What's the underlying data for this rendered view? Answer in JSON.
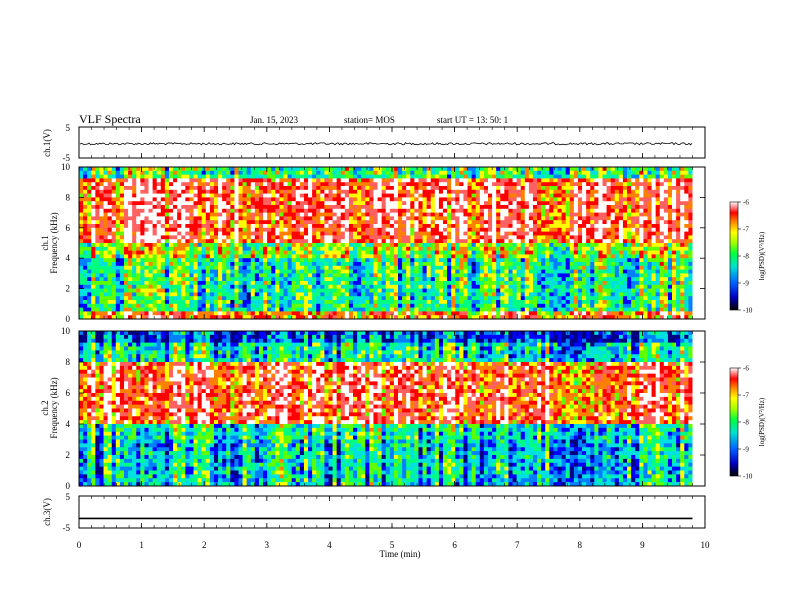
{
  "header": {
    "title": "VLF Spectra",
    "date": "Jan. 15, 2023",
    "station": "station= MOS",
    "start": "start UT = 13: 50: 1"
  },
  "chart_data": [
    {
      "type": "line",
      "panel": "ch1-waveform",
      "ylabel": "ch.1(V)",
      "ylim": [
        -5,
        5
      ],
      "y_ticks": [
        "5",
        "-5"
      ],
      "series": [
        {
          "values": [
            -0.4
          ]
        }
      ]
    },
    {
      "type": "heatmap",
      "panel": "ch1-spectrogram",
      "ylabel_channel": "ch.1",
      "ylabel": "Frequency (kHz)",
      "ylim": [
        0,
        10
      ],
      "y_ticks": [
        "0",
        "2",
        "4",
        "6",
        "8",
        "10"
      ],
      "colorbar": {
        "label": "log(PSD)(V²/Hz)",
        "range": [
          -10,
          -6
        ],
        "ticks": [
          "-6",
          "-7",
          "-8",
          "-9",
          "-10"
        ]
      },
      "description_values": {
        "dominant_log_psd_band_khz": [
          6,
          9
        ]
      }
    },
    {
      "type": "heatmap",
      "panel": "ch2-spectrogram",
      "ylabel_channel": "ch.2",
      "ylabel": "Frequency (kHz)",
      "ylim": [
        0,
        10
      ],
      "y_ticks": [
        "0",
        "2",
        "4",
        "6",
        "8",
        "10"
      ],
      "colorbar": {
        "label": "log(PSD)(V²/Hz)",
        "range": [
          -10,
          -6
        ],
        "ticks": [
          "-6",
          "-7",
          "-8",
          "-9",
          "-10"
        ]
      },
      "description_values": {
        "dominant_log_psd_band_khz": [
          4,
          8
        ]
      }
    },
    {
      "type": "line",
      "panel": "ch3-waveform",
      "ylabel": "ch.3(V)",
      "ylim": [
        -5,
        5
      ],
      "y_ticks": [
        "5",
        "-5"
      ],
      "series": [
        {
          "values": [
            -2.0
          ]
        }
      ]
    }
  ],
  "x_axis": {
    "label": "Time (min)",
    "xlim": [
      0,
      10
    ],
    "ticks": [
      "0",
      "1",
      "2",
      "3",
      "4",
      "5",
      "6",
      "7",
      "8",
      "9",
      "10"
    ],
    "data_end": 9.8
  },
  "colors": {
    "colormap": [
      "#000080",
      "#0000ff",
      "#0080ff",
      "#00e0e0",
      "#00ff80",
      "#60ff00",
      "#ffff00",
      "#ff8000",
      "#ff0000",
      "#ff6060",
      "#ffffff"
    ]
  }
}
